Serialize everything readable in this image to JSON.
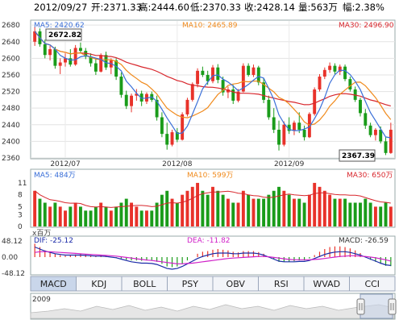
{
  "header": {
    "date": "2012/09/27",
    "open": "开:2371.33",
    "high": "高:2444.60",
    "low": "低:2370.33",
    "close": "收:2428.14",
    "volume": "量:563万",
    "change": "幅:2.38%"
  },
  "price_panel": {
    "ma5": "MA5: 2420.62",
    "ma10": "MA10: 2465.89",
    "ma30": "MA30: 2496.90",
    "max_marker": "2672.82",
    "min_marker": "2367.39",
    "y_ticks": [
      "2680",
      "2640",
      "2600",
      "2560",
      "2520",
      "2480",
      "2440",
      "2400",
      "2360"
    ],
    "x_ticks": [
      "2012/07",
      "2012/08",
      "2012/09"
    ]
  },
  "volume_panel": {
    "ma5": "MA5: 484万",
    "ma10": "MA10: 599万",
    "ma30": "MA30: 650万",
    "y_ticks": [
      "11",
      "8",
      "5",
      "3",
      "0"
    ],
    "unit": "x百万"
  },
  "macd_panel": {
    "dif": "DIF: -25.12",
    "dea": "DEA: -11.82",
    "macd": "MACD: -26.59",
    "y_ticks": [
      "48.12",
      "0.00",
      "-48.12"
    ]
  },
  "tabs": [
    "MACD",
    "KDJ",
    "BOLL",
    "PSY",
    "OBV",
    "RSI",
    "WVAD",
    "CCI"
  ],
  "active_tab": "MACD",
  "navigator": {
    "year_label": "2009"
  },
  "colors": {
    "up": "#e8322a",
    "down": "#1a9c1a",
    "ma5": "#3a6fd8",
    "ma10": "#f08a1c",
    "ma30": "#d8262c",
    "macd_dif": "#1a2aa8",
    "macd_dea": "#d020c8"
  },
  "chart_data": {
    "type": "candlestick",
    "x_ticks": [
      "2012/07",
      "2012/08",
      "2012/09"
    ],
    "ylim": [
      2360,
      2690
    ],
    "ohlc": [
      [
        2640,
        2676,
        2630,
        2665
      ],
      [
        2665,
        2672,
        2628,
        2634
      ],
      [
        2634,
        2645,
        2600,
        2608
      ],
      [
        2608,
        2630,
        2595,
        2622
      ],
      [
        2622,
        2628,
        2575,
        2582
      ],
      [
        2582,
        2600,
        2562,
        2590
      ],
      [
        2590,
        2612,
        2580,
        2600
      ],
      [
        2600,
        2622,
        2580,
        2585
      ],
      [
        2585,
        2632,
        2582,
        2625
      ],
      [
        2625,
        2638,
        2612,
        2618
      ],
      [
        2618,
        2625,
        2598,
        2604
      ],
      [
        2604,
        2612,
        2580,
        2588
      ],
      [
        2588,
        2600,
        2560,
        2568
      ],
      [
        2568,
        2612,
        2566,
        2608
      ],
      [
        2608,
        2616,
        2572,
        2578
      ],
      [
        2578,
        2600,
        2562,
        2595
      ],
      [
        2595,
        2600,
        2548,
        2556
      ],
      [
        2556,
        2566,
        2505,
        2512
      ],
      [
        2512,
        2522,
        2478,
        2485
      ],
      [
        2485,
        2515,
        2470,
        2510
      ],
      [
        2510,
        2526,
        2498,
        2515
      ],
      [
        2515,
        2522,
        2485,
        2496
      ],
      [
        2496,
        2518,
        2490,
        2514
      ],
      [
        2514,
        2520,
        2495,
        2500
      ],
      [
        2500,
        2510,
        2450,
        2458
      ],
      [
        2458,
        2470,
        2410,
        2418
      ],
      [
        2418,
        2445,
        2380,
        2392
      ],
      [
        2392,
        2428,
        2388,
        2422
      ],
      [
        2422,
        2432,
        2398,
        2404
      ],
      [
        2404,
        2470,
        2402,
        2465
      ],
      [
        2465,
        2505,
        2460,
        2500
      ],
      [
        2500,
        2542,
        2496,
        2538
      ],
      [
        2538,
        2576,
        2530,
        2570
      ],
      [
        2570,
        2580,
        2555,
        2560
      ],
      [
        2560,
        2570,
        2536,
        2545
      ],
      [
        2545,
        2584,
        2540,
        2578
      ],
      [
        2578,
        2586,
        2540,
        2548
      ],
      [
        2548,
        2556,
        2510,
        2518
      ],
      [
        2518,
        2532,
        2504,
        2525
      ],
      [
        2525,
        2536,
        2490,
        2498
      ],
      [
        2498,
        2526,
        2494,
        2520
      ],
      [
        2520,
        2588,
        2518,
        2582
      ],
      [
        2582,
        2588,
        2556,
        2560
      ],
      [
        2560,
        2585,
        2555,
        2578
      ],
      [
        2578,
        2582,
        2535,
        2542
      ],
      [
        2542,
        2552,
        2492,
        2500
      ],
      [
        2500,
        2510,
        2452,
        2458
      ],
      [
        2458,
        2480,
        2420,
        2428
      ],
      [
        2428,
        2450,
        2378,
        2392
      ],
      [
        2392,
        2448,
        2388,
        2440
      ],
      [
        2440,
        2458,
        2418,
        2425
      ],
      [
        2425,
        2450,
        2415,
        2445
      ],
      [
        2445,
        2470,
        2420,
        2428
      ],
      [
        2428,
        2438,
        2402,
        2410
      ],
      [
        2410,
        2470,
        2408,
        2466
      ],
      [
        2466,
        2530,
        2462,
        2525
      ],
      [
        2525,
        2562,
        2520,
        2556
      ],
      [
        2556,
        2578,
        2550,
        2572
      ],
      [
        2572,
        2590,
        2565,
        2582
      ],
      [
        2582,
        2588,
        2562,
        2568
      ],
      [
        2568,
        2585,
        2560,
        2580
      ],
      [
        2580,
        2585,
        2545,
        2550
      ],
      [
        2550,
        2556,
        2520,
        2525
      ],
      [
        2525,
        2532,
        2495,
        2500
      ],
      [
        2500,
        2505,
        2460,
        2468
      ],
      [
        2468,
        2478,
        2430,
        2438
      ],
      [
        2438,
        2445,
        2410,
        2415
      ],
      [
        2415,
        2432,
        2402,
        2428
      ],
      [
        2428,
        2436,
        2395,
        2400
      ],
      [
        2400,
        2410,
        2367,
        2372
      ],
      [
        2372,
        2445,
        2370,
        2428
      ]
    ],
    "volume": [
      9,
      7,
      6,
      5,
      6,
      5,
      4,
      5,
      6,
      5,
      4,
      4,
      5,
      6,
      5,
      4,
      5,
      6,
      7,
      6,
      5,
      4,
      4,
      4,
      6,
      8,
      9,
      7,
      6,
      8,
      9,
      10,
      11,
      9,
      8,
      10,
      9,
      8,
      7,
      6,
      6,
      9,
      8,
      7,
      7,
      7,
      8,
      9,
      10,
      9,
      8,
      7,
      7,
      6,
      8,
      11,
      10,
      9,
      8,
      7,
      7,
      7,
      6,
      6,
      6,
      7,
      6,
      5,
      5,
      6,
      5
    ],
    "macd": [
      40,
      30,
      20,
      14,
      10,
      6,
      4,
      6,
      8,
      10,
      8,
      6,
      4,
      5,
      3,
      1,
      -1,
      -4,
      -8,
      -10,
      -10,
      -11,
      -10,
      -10,
      -14,
      -20,
      -28,
      -30,
      -28,
      -20,
      -10,
      0,
      10,
      16,
      18,
      22,
      24,
      22,
      20,
      16,
      14,
      18,
      18,
      18,
      15,
      10,
      2,
      -6,
      -14,
      -14,
      -14,
      -12,
      -10,
      -10,
      -4,
      6,
      16,
      24,
      30,
      32,
      32,
      30,
      26,
      20,
      12,
      2,
      -8,
      -14,
      -20,
      -26,
      -27
    ],
    "dif": [
      30,
      24,
      18,
      14,
      10,
      8,
      6,
      6,
      6,
      6,
      5,
      4,
      3,
      3,
      2,
      0,
      -2,
      -6,
      -10,
      -14,
      -16,
      -18,
      -18,
      -19,
      -22,
      -28,
      -34,
      -36,
      -34,
      -28,
      -20,
      -12,
      -4,
      2,
      6,
      10,
      12,
      12,
      12,
      10,
      10,
      12,
      12,
      12,
      10,
      6,
      0,
      -6,
      -12,
      -14,
      -14,
      -14,
      -13,
      -13,
      -10,
      -4,
      2,
      8,
      12,
      15,
      16,
      16,
      14,
      10,
      6,
      0,
      -6,
      -12,
      -18,
      -23,
      -25
    ],
    "dea": [
      14,
      16,
      16,
      16,
      15,
      14,
      13,
      12,
      11,
      10,
      9,
      8,
      7,
      6,
      5,
      4,
      3,
      1,
      -1,
      -3,
      -5,
      -7,
      -9,
      -10,
      -12,
      -14,
      -16,
      -18,
      -20,
      -20,
      -19,
      -18,
      -16,
      -14,
      -12,
      -10,
      -8,
      -6,
      -4,
      -3,
      -2,
      -1,
      0,
      1,
      2,
      2,
      1,
      -1,
      -3,
      -5,
      -7,
      -8,
      -8,
      -8,
      -8,
      -7,
      -6,
      -4,
      -2,
      0,
      2,
      3,
      4,
      4,
      3,
      2,
      0,
      -2,
      -5,
      -8,
      -11.82
    ]
  }
}
